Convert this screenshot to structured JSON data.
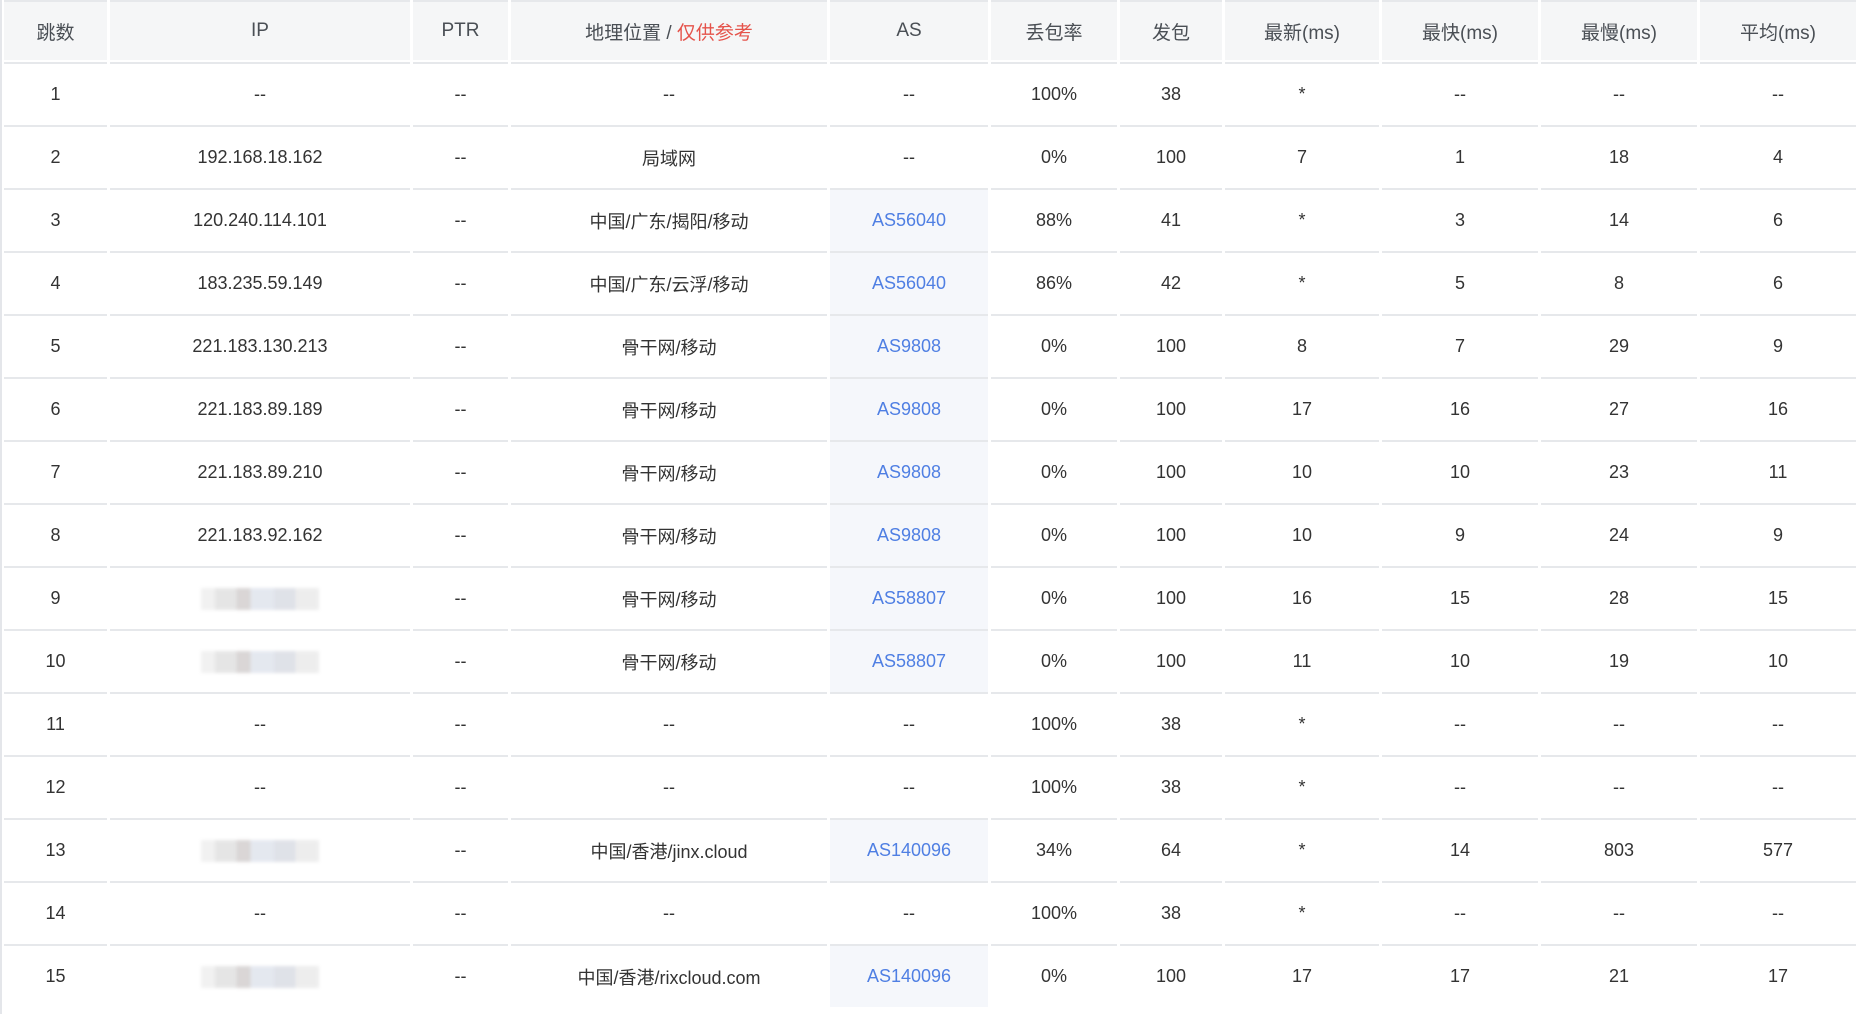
{
  "colors": {
    "link": "#4f7fe3",
    "reference_red": "#e5534b",
    "header_bg": "#f5f6f7",
    "as_cell_bg": "#f5f7fb"
  },
  "headers": {
    "hop": "跳数",
    "ip": "IP",
    "ptr": "PTR",
    "geo": "地理位置 /",
    "geo_note": "仅供参考",
    "as": "AS",
    "loss": "丢包率",
    "sent": "发包",
    "last": "最新(ms)",
    "best": "最快(ms)",
    "worst": "最慢(ms)",
    "avg": "平均(ms)"
  },
  "rows": [
    {
      "hop": "1",
      "ip": "--",
      "ip_redacted": false,
      "ptr": "--",
      "geo": "--",
      "as": "--",
      "as_link": false,
      "loss": "100%",
      "sent": "38",
      "last": "*",
      "best": "--",
      "worst": "--",
      "avg": "--"
    },
    {
      "hop": "2",
      "ip": "192.168.18.162",
      "ip_redacted": false,
      "ptr": "--",
      "geo": "局域网",
      "as": "--",
      "as_link": false,
      "loss": "0%",
      "sent": "100",
      "last": "7",
      "best": "1",
      "worst": "18",
      "avg": "4"
    },
    {
      "hop": "3",
      "ip": "120.240.114.101",
      "ip_redacted": false,
      "ptr": "--",
      "geo": "中国/广东/揭阳/移动",
      "as": "AS56040",
      "as_link": true,
      "loss": "88%",
      "sent": "41",
      "last": "*",
      "best": "3",
      "worst": "14",
      "avg": "6"
    },
    {
      "hop": "4",
      "ip": "183.235.59.149",
      "ip_redacted": false,
      "ptr": "--",
      "geo": "中国/广东/云浮/移动",
      "as": "AS56040",
      "as_link": true,
      "loss": "86%",
      "sent": "42",
      "last": "*",
      "best": "5",
      "worst": "8",
      "avg": "6"
    },
    {
      "hop": "5",
      "ip": "221.183.130.213",
      "ip_redacted": false,
      "ptr": "--",
      "geo": "骨干网/移动",
      "as": "AS9808",
      "as_link": true,
      "loss": "0%",
      "sent": "100",
      "last": "8",
      "best": "7",
      "worst": "29",
      "avg": "9"
    },
    {
      "hop": "6",
      "ip": "221.183.89.189",
      "ip_redacted": false,
      "ptr": "--",
      "geo": "骨干网/移动",
      "as": "AS9808",
      "as_link": true,
      "loss": "0%",
      "sent": "100",
      "last": "17",
      "best": "16",
      "worst": "27",
      "avg": "16"
    },
    {
      "hop": "7",
      "ip": "221.183.89.210",
      "ip_redacted": false,
      "ptr": "--",
      "geo": "骨干网/移动",
      "as": "AS9808",
      "as_link": true,
      "loss": "0%",
      "sent": "100",
      "last": "10",
      "best": "10",
      "worst": "23",
      "avg": "11"
    },
    {
      "hop": "8",
      "ip": "221.183.92.162",
      "ip_redacted": false,
      "ptr": "--",
      "geo": "骨干网/移动",
      "as": "AS9808",
      "as_link": true,
      "loss": "0%",
      "sent": "100",
      "last": "10",
      "best": "9",
      "worst": "24",
      "avg": "9"
    },
    {
      "hop": "9",
      "ip_redacted": true,
      "ptr": "--",
      "geo": "骨干网/移动",
      "as": "AS58807",
      "as_link": true,
      "loss": "0%",
      "sent": "100",
      "last": "16",
      "best": "15",
      "worst": "28",
      "avg": "15"
    },
    {
      "hop": "10",
      "ip_redacted": true,
      "ptr": "--",
      "geo": "骨干网/移动",
      "as": "AS58807",
      "as_link": true,
      "loss": "0%",
      "sent": "100",
      "last": "11",
      "best": "10",
      "worst": "19",
      "avg": "10"
    },
    {
      "hop": "11",
      "ip": "--",
      "ip_redacted": false,
      "ptr": "--",
      "geo": "--",
      "as": "--",
      "as_link": false,
      "loss": "100%",
      "sent": "38",
      "last": "*",
      "best": "--",
      "worst": "--",
      "avg": "--"
    },
    {
      "hop": "12",
      "ip": "--",
      "ip_redacted": false,
      "ptr": "--",
      "geo": "--",
      "as": "--",
      "as_link": false,
      "loss": "100%",
      "sent": "38",
      "last": "*",
      "best": "--",
      "worst": "--",
      "avg": "--"
    },
    {
      "hop": "13",
      "ip_redacted": true,
      "ptr": "--",
      "geo": "中国/香港/jinx.cloud",
      "as": "AS140096",
      "as_link": true,
      "loss": "34%",
      "sent": "64",
      "last": "*",
      "best": "14",
      "worst": "803",
      "avg": "577"
    },
    {
      "hop": "14",
      "ip": "--",
      "ip_redacted": false,
      "ptr": "--",
      "geo": "--",
      "as": "--",
      "as_link": false,
      "loss": "100%",
      "sent": "38",
      "last": "*",
      "best": "--",
      "worst": "--",
      "avg": "--"
    },
    {
      "hop": "15",
      "ip_redacted": true,
      "ptr": "--",
      "geo": "中国/香港/rixcloud.com",
      "as": "AS140096",
      "as_link": true,
      "loss": "0%",
      "sent": "100",
      "last": "17",
      "best": "17",
      "worst": "21",
      "avg": "17"
    }
  ]
}
